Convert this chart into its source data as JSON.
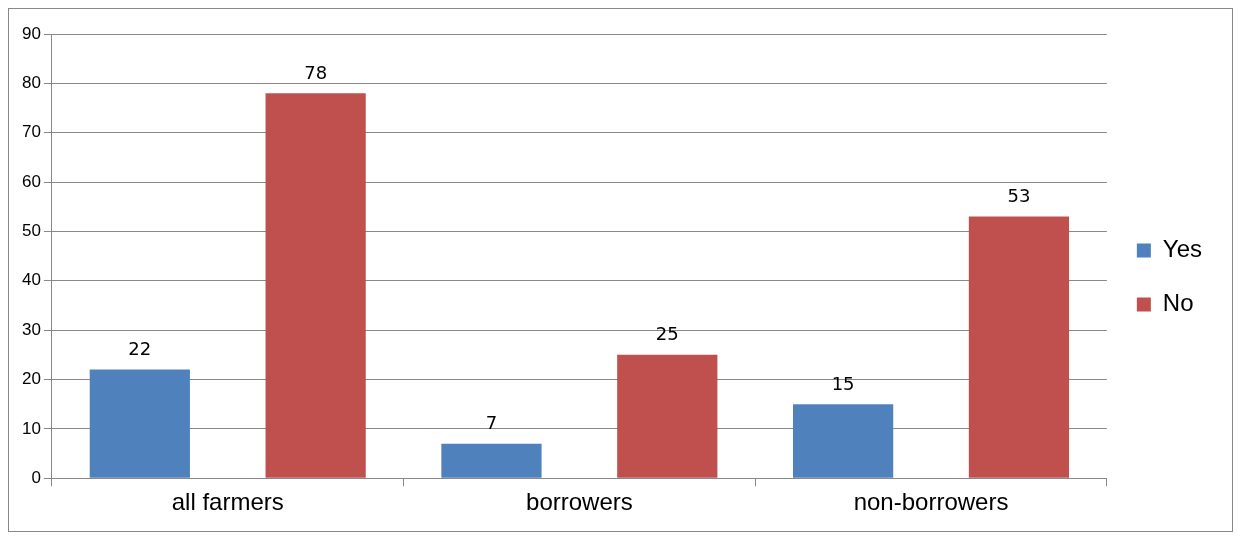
{
  "chart_data": {
    "type": "bar",
    "categories": [
      "all farmers",
      "borrowers",
      "non-borrowers"
    ],
    "series": [
      {
        "name": "Yes",
        "color": "#4f81bd",
        "values": [
          22,
          7,
          15
        ]
      },
      {
        "name": "No",
        "color": "#c0504d",
        "values": [
          78,
          25,
          53
        ]
      }
    ],
    "ylim": [
      0,
      90
    ],
    "yticks": [
      0,
      10,
      20,
      30,
      40,
      50,
      60,
      70,
      80,
      90
    ],
    "grid": "y",
    "legend": "right",
    "data_labels": true
  }
}
